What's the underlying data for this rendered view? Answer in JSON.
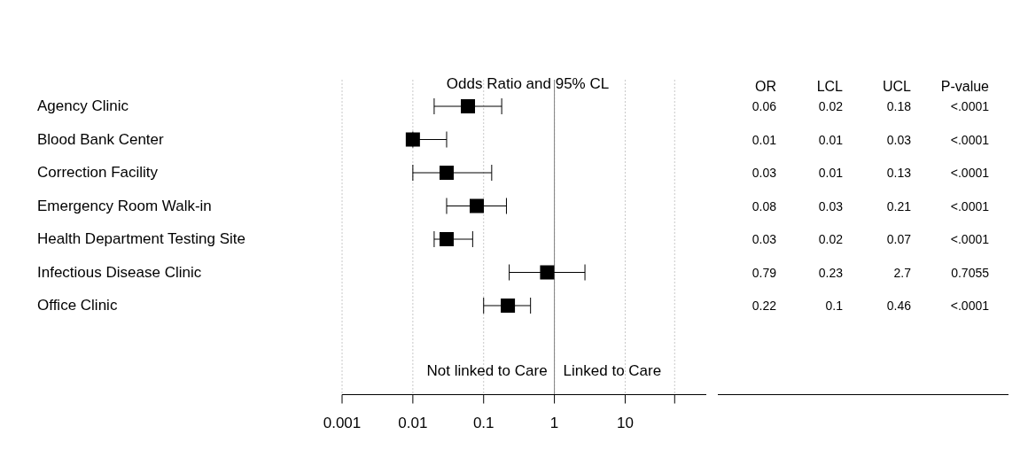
{
  "chart_data": [
    {
      "type": "scatter",
      "orientation": "horizontal",
      "title": "Odds Ratio and 95% CL",
      "log": "x",
      "marker": "square",
      "grid": "x",
      "categories": [
        "Agency Clinic",
        "Blood Bank Center",
        "Correction Facility",
        "Emergency Room Walk-in",
        "Health Department Testing Site",
        "Infectious Disease Clinic",
        "Office Clinic"
      ],
      "series": [
        {
          "color": "#000000",
          "values": [
            0.06,
            0.01,
            0.03,
            0.08,
            0.03,
            0.79,
            0.22
          ],
          "errors": [
            [
              0.02,
              0.18
            ],
            [
              0.01,
              0.03
            ],
            [
              0.01,
              0.13
            ],
            [
              0.03,
              0.21
            ],
            [
              0.02,
              0.07
            ],
            [
              0.23,
              2.7
            ],
            [
              0.1,
              0.46
            ]
          ]
        }
      ],
      "xlim": [
        0.001,
        140
      ],
      "xticks": [
        0.001,
        0.01,
        0.1,
        1,
        10,
        {
          "value": 50,
          "label": null
        }
      ],
      "ref_lines": [
        {
          "axis": "x",
          "value": 1,
          "color": "#808080"
        }
      ],
      "annotations": [
        "Not linked to Care",
        "Linked to Care"
      ]
    },
    {
      "type": "other",
      "annotations": [
        "OR",
        "LCL",
        "UCL",
        "P-value",
        "0.06",
        "0.02",
        "0.18",
        "<.0001",
        "0.01",
        "0.01",
        "0.03",
        "<.0001",
        "0.03",
        "0.01",
        "0.13",
        "<.0001",
        "0.08",
        "0.03",
        "0.21",
        "<.0001",
        "0.03",
        "0.02",
        "0.07",
        "<.0001",
        "0.79",
        "0.23",
        "2.7",
        "0.7055",
        "0.22",
        "0.1",
        "0.46",
        "<.0001"
      ]
    }
  ]
}
